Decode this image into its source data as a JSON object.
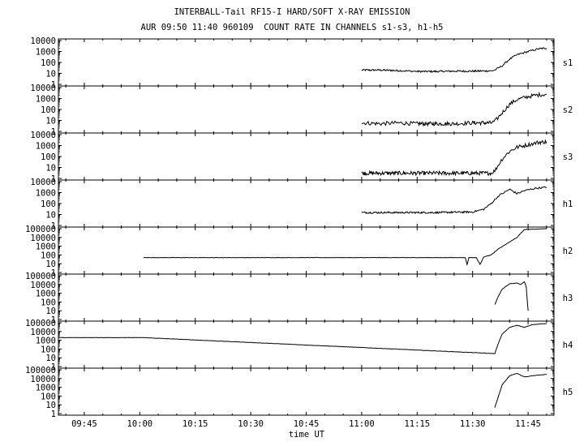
{
  "title": "INTERBALL-Tail RF15-I HARD/SOFT X-RAY EMISSION",
  "subtitle": "AUR 09:50 11:40 960109  COUNT RATE IN CHANNELS s1-s3, h1-h5",
  "chart_data": {
    "type": "line",
    "xlabel": "time UT",
    "x_range": [
      "09:38",
      "11:52"
    ],
    "x_ticks": [
      "09:45",
      "10:00",
      "10:15",
      "10:30",
      "10:45",
      "11:00",
      "11:15",
      "11:30",
      "11:45"
    ],
    "y_scale": "log",
    "grid": false,
    "panels": [
      {
        "name": "s1",
        "y_ticks": [
          "1",
          "10",
          "100",
          "1000",
          "10000"
        ],
        "ylim": [
          1,
          10000
        ],
        "x": [
          "11:00",
          "11:05",
          "11:10",
          "11:15",
          "11:20",
          "11:25",
          "11:30",
          "11:35",
          "11:36",
          "11:38",
          "11:40",
          "11:42",
          "11:45",
          "11:48",
          "11:50"
        ],
        "values": [
          20,
          20,
          18,
          15,
          15,
          16,
          16,
          17,
          20,
          50,
          200,
          500,
          1000,
          1800,
          2000
        ]
      },
      {
        "name": "s2",
        "y_ticks": [
          "1",
          "10",
          "100",
          "1000",
          "10000"
        ],
        "ylim": [
          1,
          10000
        ],
        "x": [
          "11:00",
          "11:05",
          "11:10",
          "11:15",
          "11:20",
          "11:25",
          "11:30",
          "11:35",
          "11:36",
          "11:38",
          "11:40",
          "11:42",
          "11:45",
          "11:48",
          "11:50"
        ],
        "values": [
          6,
          5,
          6,
          5,
          5,
          5,
          6,
          6,
          8,
          50,
          300,
          800,
          1500,
          2200,
          2500
        ]
      },
      {
        "name": "s3",
        "y_ticks": [
          "1",
          "10",
          "100",
          "1000",
          "10000"
        ],
        "ylim": [
          1,
          10000
        ],
        "x": [
          "11:00",
          "11:05",
          "11:10",
          "11:15",
          "11:20",
          "11:25",
          "11:30",
          "11:35",
          "11:36",
          "11:38",
          "11:40",
          "11:42",
          "11:45",
          "11:48",
          "11:50"
        ],
        "values": [
          3,
          3,
          3,
          3,
          3,
          3,
          3,
          3,
          5,
          60,
          300,
          700,
          1200,
          2000,
          2200
        ]
      },
      {
        "name": "h1",
        "y_ticks": [
          "1",
          "10",
          "100",
          "1000",
          "10000"
        ],
        "ylim": [
          1,
          10000
        ],
        "x": [
          "11:00",
          "11:05",
          "11:10",
          "11:15",
          "11:20",
          "11:25",
          "11:30",
          "11:33",
          "11:35",
          "11:37",
          "11:40",
          "11:42",
          "11:44",
          "11:47",
          "11:50"
        ],
        "values": [
          15,
          15,
          15,
          15,
          15,
          16,
          17,
          30,
          100,
          500,
          2000,
          800,
          1500,
          2500,
          3000
        ]
      },
      {
        "name": "h2",
        "y_ticks": [
          "1",
          "10",
          "100",
          "1000",
          "10000",
          "100000"
        ],
        "ylim": [
          1,
          100000
        ],
        "x": [
          "10:01",
          "11:28",
          "11:28.5",
          "11:29",
          "11:31",
          "11:32",
          "11:33",
          "11:35",
          "11:37",
          "11:40",
          "11:42",
          "11:44",
          "11:47",
          "11:50"
        ],
        "values": [
          50,
          50,
          8,
          50,
          50,
          8,
          60,
          100,
          500,
          3000,
          10000,
          80000,
          90000,
          100000
        ]
      },
      {
        "name": "h3",
        "y_ticks": [
          "1",
          "10",
          "100",
          "1000",
          "10000",
          "100000"
        ],
        "ylim": [
          1,
          100000
        ],
        "x": [
          "11:36",
          "11:37",
          "11:38",
          "11:40",
          "11:42",
          "11:43",
          "11:44",
          "11:44.5",
          "11:45"
        ],
        "values": [
          50,
          500,
          3000,
          12000,
          15000,
          10000,
          20000,
          5000,
          10
        ]
      },
      {
        "name": "h4",
        "y_ticks": [
          "1",
          "10",
          "100",
          "1000",
          "10000",
          "100000"
        ],
        "ylim": [
          1,
          100000
        ],
        "x": [
          "09:38",
          "10:01",
          "11:36",
          "11:37",
          "11:38",
          "11:40",
          "11:42",
          "11:44",
          "11:46",
          "11:48",
          "11:50"
        ],
        "values": [
          2000,
          2000,
          30,
          500,
          5000,
          30000,
          50000,
          30000,
          60000,
          70000,
          80000
        ]
      },
      {
        "name": "h5",
        "y_ticks": [
          "1",
          "10",
          "100",
          "1000",
          "10000",
          "100000"
        ],
        "ylim": [
          1,
          100000
        ],
        "x": [
          "11:36",
          "11:37",
          "11:38",
          "11:40",
          "11:42",
          "11:44",
          "11:46",
          "11:48",
          "11:50"
        ],
        "values": [
          5,
          100,
          2000,
          20000,
          40000,
          15000,
          20000,
          25000,
          30000
        ]
      }
    ]
  }
}
